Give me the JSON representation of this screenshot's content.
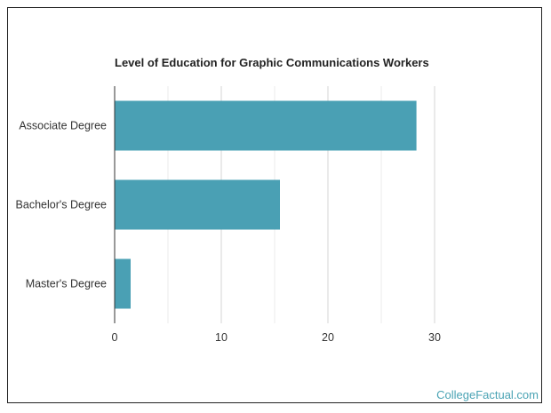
{
  "chart_data": {
    "type": "bar",
    "orientation": "horizontal",
    "title": "Level of Education for Graphic Communications Workers",
    "categories": [
      "Associate Degree",
      "Bachelor's Degree",
      "Master's Degree"
    ],
    "values": [
      28.3,
      15.5,
      1.5
    ],
    "xlim": [
      0,
      35
    ],
    "xticks": [
      0,
      10,
      20,
      30
    ],
    "grid": true,
    "bar_color": "#4aa0b4"
  },
  "watermark": "CollegeFactual.com"
}
